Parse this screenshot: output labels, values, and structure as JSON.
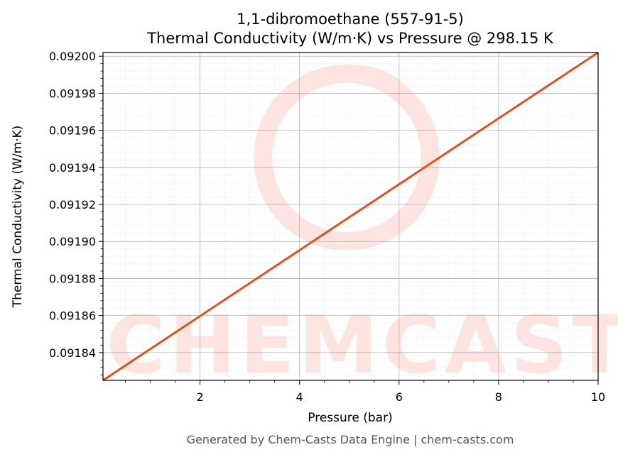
{
  "chart_data": {
    "type": "line",
    "title": "1,1-dibromoethane (557-91-5)",
    "subtitle": "Thermal Conductivity (W/m·K) vs Pressure @ 298.15 K",
    "xlabel": "Pressure (bar)",
    "ylabel": "Thermal Conductivity (W/m·K)",
    "xlim": [
      0.05,
      10
    ],
    "ylim": [
      0.091825,
      0.092002
    ],
    "x_ticks": [
      2,
      4,
      6,
      8,
      10
    ],
    "y_ticks": [
      0.09184,
      0.09186,
      0.09188,
      0.0919,
      0.09192,
      0.09194,
      0.09196,
      0.09198,
      0.092
    ],
    "x_tick_labels": [
      "2",
      "4",
      "6",
      "8",
      "10"
    ],
    "y_tick_labels": [
      "0.09184",
      "0.09186",
      "0.09188",
      "0.09190",
      "0.09192",
      "0.09194",
      "0.09196",
      "0.09198",
      "0.09200"
    ],
    "grid": true,
    "series": [
      {
        "x": [
          0.05,
          10
        ],
        "y": [
          0.091825,
          0.092002
        ],
        "color": "#d9541e"
      }
    ]
  },
  "watermark": {
    "text": "CHEMCASTS",
    "color": "#fde4e0"
  },
  "footer": "Generated by Chem-Casts Data Engine | chem-casts.com"
}
